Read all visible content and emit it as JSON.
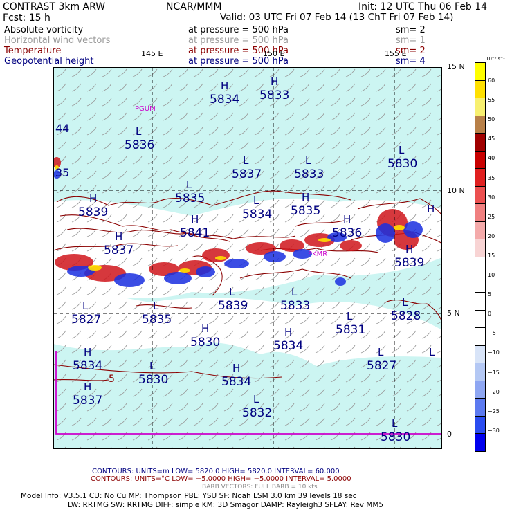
{
  "header": {
    "left_line1": "CONTRAST  3km ARW",
    "center_line1": "NCAR/MMM",
    "right_line1": "Init: 12 UTC Thu 06 Feb 14",
    "left_line2": "Fcst:    15 h",
    "right_line2": "Valid: 03 UTC Fri 07 Feb 14 (13 ChT Fri 07 Feb 14)"
  },
  "fields": [
    {
      "name": "Absolute vorticity",
      "desc": "at pressure =  500 hPa",
      "sm": "sm= 2",
      "color": "#000000"
    },
    {
      "name": "Horizontal wind vectors",
      "desc": "at pressure =  500 hPa",
      "sm": "sm= 1",
      "color": "#9a9a9a"
    },
    {
      "name": "Temperature",
      "desc": "at pressure =  500 hPa",
      "sm": "sm= 2",
      "color": "#8b0000"
    },
    {
      "name": "Geopotential height",
      "desc": "at pressure =  500 hPa",
      "sm": "sm= 4",
      "color": "#000080"
    }
  ],
  "map": {
    "lon_labels": [
      "145 E",
      "150 E",
      "155 E"
    ],
    "lat_labels": [
      "15 N",
      "10 N",
      "5 N",
      "0"
    ],
    "station_labels": [
      "PGUM",
      "PKMR"
    ],
    "colors": {
      "ocean": "#ccf5f2",
      "land": "#ffffff",
      "grid": "#000000",
      "height": "#000080",
      "temp": "#8b0000",
      "frame": "#cc00cc"
    },
    "centers": [
      {
        "type": "H",
        "value": "5834"
      },
      {
        "type": "H",
        "value": "5833"
      },
      {
        "type": "L",
        "value": "5836"
      },
      {
        "type": "L",
        "value": "5837"
      },
      {
        "type": "L",
        "value": "5833"
      },
      {
        "type": "L",
        "value": "5830"
      },
      {
        "type": "L",
        "value": "5835"
      },
      {
        "type": "H",
        "value": "5839"
      },
      {
        "type": "L",
        "value": "5834"
      },
      {
        "type": "H",
        "value": "5835"
      },
      {
        "type": "H",
        "value": "5841"
      },
      {
        "type": "H",
        "value": "5837"
      },
      {
        "type": "H",
        "value": "5836"
      },
      {
        "type": "H",
        "value": "5839"
      },
      {
        "type": "L",
        "value": "5839"
      },
      {
        "type": "L",
        "value": "5833"
      },
      {
        "type": "L",
        "value": "5827"
      },
      {
        "type": "L",
        "value": "5835"
      },
      {
        "type": "L",
        "value": "5831"
      },
      {
        "type": "L",
        "value": "5828"
      },
      {
        "type": "H",
        "value": "5830"
      },
      {
        "type": "H",
        "value": "5834"
      },
      {
        "type": "H",
        "value": "5834"
      },
      {
        "type": "L",
        "value": "5830"
      },
      {
        "type": "H",
        "value": "5834"
      },
      {
        "type": "L",
        "value": "5827"
      },
      {
        "type": "H",
        "value": "5837"
      },
      {
        "type": "L",
        "value": "5832"
      },
      {
        "type": "L",
        "value": "5830"
      },
      {
        "type": "H",
        "value": ""
      },
      {
        "type": "L",
        "value": ""
      }
    ],
    "edge_values": [
      "44",
      "35",
      "5"
    ]
  },
  "colorbar": {
    "unit": "10⁻⁵ s⁻¹",
    "labels": [
      "60",
      "55",
      "50",
      "45",
      "40",
      "35",
      "30",
      "25",
      "20",
      "15",
      "10",
      "5",
      "0",
      "−5",
      "−10",
      "−15",
      "−20",
      "−25",
      "−30"
    ],
    "colors": [
      "#0000ee",
      "#2a4cf0",
      "#5c7af0",
      "#8ea6f2",
      "#b4c8f4",
      "#d8e4f8",
      "#ffffff",
      "#ffffff",
      "#ffffff",
      "#ffffff",
      "#ffffff",
      "#f8d4d4",
      "#f4aaaa",
      "#f08080",
      "#ec5050",
      "#e02020",
      "#c80000",
      "#a00000",
      "#b88048",
      "#f8f070",
      "#ffe000",
      "#ffff00"
    ]
  },
  "footer": {
    "contours1": "CONTOURS:  UNITS=m  LOW=  5820.0       HIGH=  5820.0       INTERVAL=   60.000",
    "contours2": "CONTOURS:  UNITS=°C  LOW= −5.0000      HIGH= −5.0000      INTERVAL=   5.0000",
    "barbs": "BARB VECTORS:  FULL BARB = 10 kts",
    "model1": "Model Info: V3.5.1    CU: No Cu    MP: Thompson    PBL: YSU    SF: Noah LSM    3.0 km   39 levels   18 sec",
    "model2": "LW: RRTMG   SW: RRTMG  DIFF: simple KM: 3D Smagor DAMP: Rayleigh3  SFLAY: Rev MM5"
  }
}
